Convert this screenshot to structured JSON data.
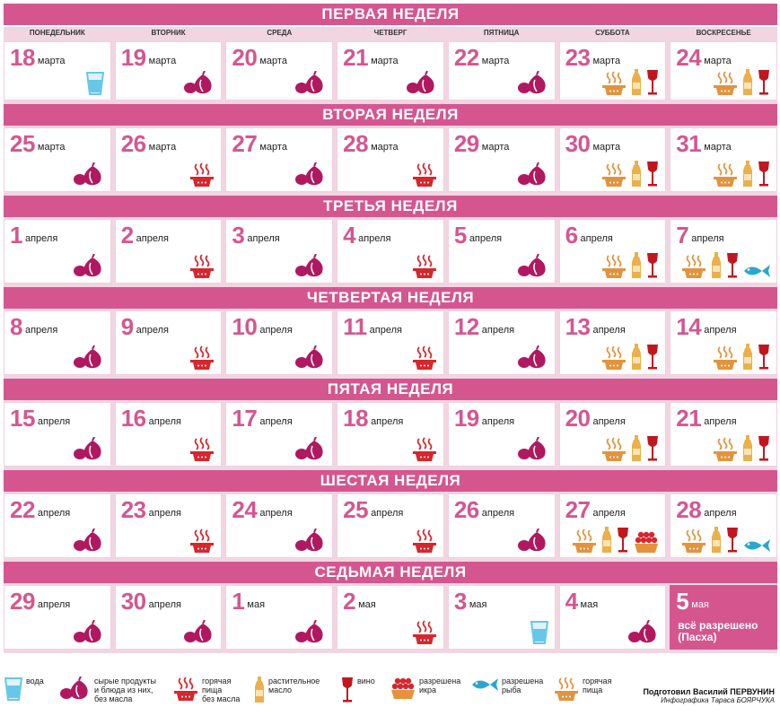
{
  "colors": {
    "accent": "#d5568f",
    "band_light": "#f1d6e2",
    "onion": "#b0185f",
    "pot": "#d7262c",
    "oil": "#eab04a",
    "wine": "#c0171f",
    "fish": "#2aa7cf",
    "water": "#66c7e8",
    "pizza": "#e3933d"
  },
  "day_headers": [
    "ПОНЕДЕЛЬНИК",
    "ВТОРНИК",
    "СРЕДА",
    "ЧЕТВЕРГ",
    "ПЯТНИЦА",
    "СУББОТА",
    "ВОСКРЕСЕНЬЕ"
  ],
  "weeks": [
    {
      "title": "ПЕРВАЯ НЕДЕЛЯ",
      "days": [
        {
          "num": "18",
          "month": "марта",
          "icons": [
            "water-icon"
          ]
        },
        {
          "num": "19",
          "month": "марта",
          "icons": [
            "raw-food-icon"
          ]
        },
        {
          "num": "20",
          "month": "марта",
          "icons": [
            "raw-food-icon"
          ]
        },
        {
          "num": "21",
          "month": "марта",
          "icons": [
            "raw-food-icon"
          ]
        },
        {
          "num": "22",
          "month": "марта",
          "icons": [
            "raw-food-icon"
          ]
        },
        {
          "num": "23",
          "month": "марта",
          "icons": [
            "hot-food-oil-icon",
            "oil-icon",
            "wine-icon"
          ]
        },
        {
          "num": "24",
          "month": "марта",
          "icons": [
            "hot-food-oil-icon",
            "oil-icon",
            "wine-icon"
          ]
        }
      ]
    },
    {
      "title": "ВТОРАЯ НЕДЕЛЯ",
      "days": [
        {
          "num": "25",
          "month": "марта",
          "icons": [
            "raw-food-icon"
          ]
        },
        {
          "num": "26",
          "month": "марта",
          "icons": [
            "hot-food-icon"
          ]
        },
        {
          "num": "27",
          "month": "марта",
          "icons": [
            "raw-food-icon"
          ]
        },
        {
          "num": "28",
          "month": "марта",
          "icons": [
            "hot-food-icon"
          ]
        },
        {
          "num": "29",
          "month": "марта",
          "icons": [
            "raw-food-icon"
          ]
        },
        {
          "num": "30",
          "month": "марта",
          "icons": [
            "hot-food-oil-icon",
            "oil-icon",
            "wine-icon"
          ]
        },
        {
          "num": "31",
          "month": "марта",
          "icons": [
            "hot-food-oil-icon",
            "oil-icon",
            "wine-icon"
          ]
        }
      ]
    },
    {
      "title": "ТРЕТЬЯ НЕДЕЛЯ",
      "days": [
        {
          "num": "1",
          "month": "апреля",
          "icons": [
            "raw-food-icon"
          ]
        },
        {
          "num": "2",
          "month": "апреля",
          "icons": [
            "hot-food-icon"
          ]
        },
        {
          "num": "3",
          "month": "апреля",
          "icons": [
            "raw-food-icon"
          ]
        },
        {
          "num": "4",
          "month": "апреля",
          "icons": [
            "hot-food-icon"
          ]
        },
        {
          "num": "5",
          "month": "апреля",
          "icons": [
            "raw-food-icon"
          ]
        },
        {
          "num": "6",
          "month": "апреля",
          "icons": [
            "hot-food-oil-icon",
            "oil-icon",
            "wine-icon"
          ]
        },
        {
          "num": "7",
          "month": "апреля",
          "icons": [
            "hot-food-oil-icon",
            "oil-icon",
            "wine-icon",
            "fish-icon"
          ]
        }
      ]
    },
    {
      "title": "ЧЕТВЕРТАЯ НЕДЕЛЯ",
      "days": [
        {
          "num": "8",
          "month": "апреля",
          "icons": [
            "raw-food-icon"
          ]
        },
        {
          "num": "9",
          "month": "апреля",
          "icons": [
            "hot-food-icon"
          ]
        },
        {
          "num": "10",
          "month": "апреля",
          "icons": [
            "raw-food-icon"
          ]
        },
        {
          "num": "11",
          "month": "апреля",
          "icons": [
            "hot-food-icon"
          ]
        },
        {
          "num": "12",
          "month": "апреля",
          "icons": [
            "raw-food-icon"
          ]
        },
        {
          "num": "13",
          "month": "апреля",
          "icons": [
            "hot-food-oil-icon",
            "oil-icon",
            "wine-icon"
          ]
        },
        {
          "num": "14",
          "month": "апреля",
          "icons": [
            "hot-food-oil-icon",
            "oil-icon",
            "wine-icon"
          ]
        }
      ]
    },
    {
      "title": "ПЯТАЯ НЕДЕЛЯ",
      "days": [
        {
          "num": "15",
          "month": "апреля",
          "icons": [
            "raw-food-icon"
          ]
        },
        {
          "num": "16",
          "month": "апреля",
          "icons": [
            "hot-food-icon"
          ]
        },
        {
          "num": "17",
          "month": "апреля",
          "icons": [
            "raw-food-icon"
          ]
        },
        {
          "num": "18",
          "month": "апреля",
          "icons": [
            "hot-food-icon"
          ]
        },
        {
          "num": "19",
          "month": "апреля",
          "icons": [
            "raw-food-icon"
          ]
        },
        {
          "num": "20",
          "month": "апреля",
          "icons": [
            "hot-food-oil-icon",
            "oil-icon",
            "wine-icon"
          ]
        },
        {
          "num": "21",
          "month": "апреля",
          "icons": [
            "hot-food-oil-icon",
            "oil-icon",
            "wine-icon"
          ]
        }
      ]
    },
    {
      "title": "ШЕСТАЯ НЕДЕЛЯ",
      "days": [
        {
          "num": "22",
          "month": "апреля",
          "icons": [
            "raw-food-icon"
          ]
        },
        {
          "num": "23",
          "month": "апреля",
          "icons": [
            "hot-food-icon"
          ]
        },
        {
          "num": "24",
          "month": "апреля",
          "icons": [
            "raw-food-icon"
          ]
        },
        {
          "num": "25",
          "month": "апреля",
          "icons": [
            "hot-food-icon"
          ]
        },
        {
          "num": "26",
          "month": "апреля",
          "icons": [
            "raw-food-icon"
          ]
        },
        {
          "num": "27",
          "month": "апреля",
          "icons": [
            "hot-food-oil-icon",
            "oil-icon",
            "wine-icon",
            "caviar-icon"
          ]
        },
        {
          "num": "28",
          "month": "апреля",
          "icons": [
            "hot-food-oil-icon",
            "oil-icon",
            "wine-icon",
            "fish-icon"
          ]
        }
      ]
    },
    {
      "title": "СЕДЬМАЯ НЕДЕЛЯ",
      "days": [
        {
          "num": "29",
          "month": "апреля",
          "icons": [
            "raw-food-icon"
          ]
        },
        {
          "num": "30",
          "month": "апреля",
          "icons": [
            "raw-food-icon"
          ]
        },
        {
          "num": "1",
          "month": "мая",
          "icons": [
            "raw-food-icon"
          ]
        },
        {
          "num": "2",
          "month": "мая",
          "icons": [
            "hot-food-icon"
          ]
        },
        {
          "num": "3",
          "month": "мая",
          "icons": [
            "water-icon"
          ]
        },
        {
          "num": "4",
          "month": "мая",
          "icons": [
            "raw-food-icon"
          ]
        },
        {
          "num": "5",
          "month": "мая",
          "icons": [],
          "special": true,
          "note": "всё разрешено (Пасха)"
        }
      ]
    }
  ],
  "legend": [
    {
      "icon": "water-icon",
      "text": "вода"
    },
    {
      "icon": "raw-food-icon",
      "text": "сырые продукты\nи блюда из них,\nбез масла"
    },
    {
      "icon": "hot-food-icon",
      "text": "горячая\nпища\nбез масла"
    },
    {
      "icon": "oil-icon",
      "text": "растительное\nмасло"
    },
    {
      "icon": "wine-icon",
      "text": "вино"
    },
    {
      "icon": "caviar-icon",
      "text": "разрешена\nикра"
    },
    {
      "icon": "fish-icon",
      "text": "разрешена\nрыба"
    },
    {
      "icon": "hot-food-oil-icon",
      "text": "горячая\nпища"
    }
  ],
  "credits": {
    "main": "Подготовил Василий ПЕРВУНИН",
    "sub": "Инфографика Тараса БОЯРЧУКА"
  }
}
